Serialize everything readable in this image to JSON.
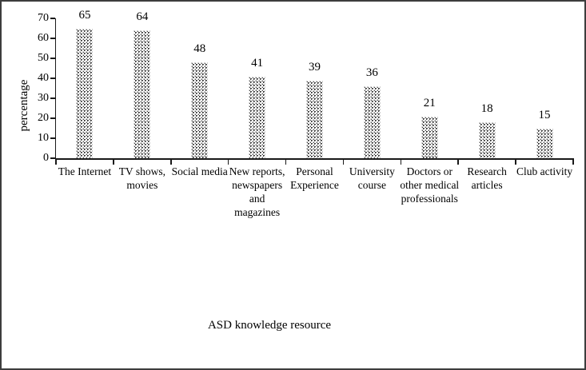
{
  "figure": {
    "background": "#ffffff",
    "border_color": "#3d3d3d",
    "text_color": "#000000"
  },
  "chart_data": {
    "type": "bar",
    "title": "",
    "xlabel": "ASD knowledge resource",
    "ylabel": "percentage",
    "categories": [
      "The Internet",
      "TV shows,\nmovies",
      "Social media",
      "New reports,\nnewspapers\nand\nmagazines",
      "Personal\nExperience",
      "University\ncourse",
      "Doctors or\nother medical\nprofessionals",
      "Research\narticles",
      "Club activity"
    ],
    "values": [
      65,
      64,
      48,
      41,
      39,
      36,
      21,
      18,
      15
    ],
    "ylim": [
      0,
      70
    ],
    "yticks": [
      0,
      10,
      20,
      30,
      40,
      50,
      60,
      70
    ],
    "grid": "off",
    "legend": "none",
    "bar_fill_style": "dotted-diamond-pattern",
    "bar_pattern_color": "#3c3c3c"
  }
}
